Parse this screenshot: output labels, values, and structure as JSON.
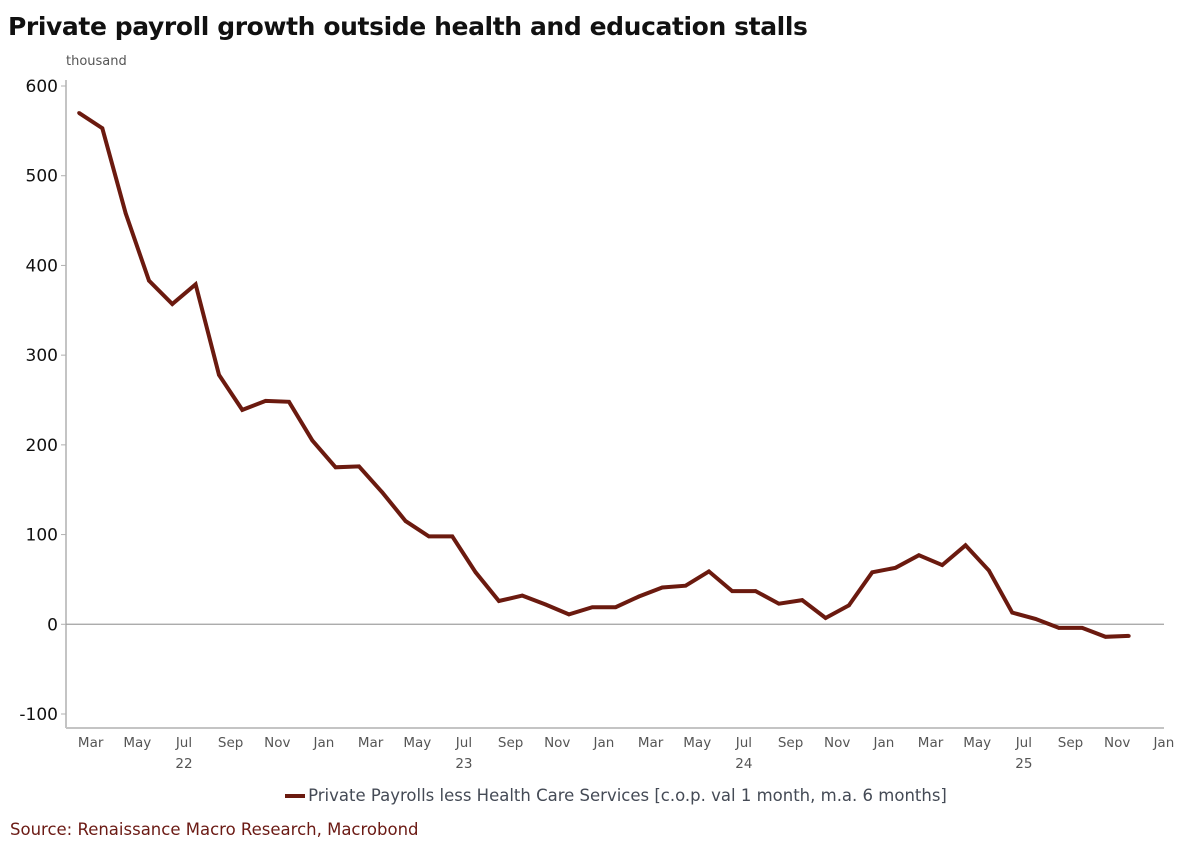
{
  "chart_data": {
    "type": "line",
    "title": "Private payroll growth outside health and education stalls",
    "ylabel": "thousand",
    "xlabel": "",
    "ylim": [
      -100,
      600
    ],
    "yticks": [
      -100,
      0,
      100,
      200,
      300,
      400,
      500,
      600
    ],
    "ytick_labels": [
      "-100",
      "0",
      "100",
      "200",
      "300",
      "400",
      "500",
      "600"
    ],
    "x_start": "2022-03",
    "x_end_axis": "2026-01",
    "xtick_labels": [
      "Mar",
      "May",
      "Jul",
      "Sep",
      "Nov",
      "Jan",
      "Mar",
      "May",
      "Jul",
      "Sep",
      "Nov",
      "Jan",
      "Mar",
      "May",
      "Jul",
      "Sep",
      "Nov",
      "Jan",
      "Mar",
      "May",
      "Jul",
      "Sep",
      "Nov",
      "Jan"
    ],
    "xtick_months_offset": [
      0,
      2,
      4,
      6,
      8,
      10,
      12,
      14,
      16,
      18,
      20,
      22,
      24,
      26,
      28,
      30,
      32,
      34,
      36,
      38,
      40,
      42,
      44,
      46
    ],
    "year_labels": [
      {
        "label": "22",
        "month_offset": 4
      },
      {
        "label": "23",
        "month_offset": 16
      },
      {
        "label": "24",
        "month_offset": 28
      },
      {
        "label": "25",
        "month_offset": 40
      }
    ],
    "grid": false,
    "zero_line": true,
    "legend_position": "bottom-center",
    "series": [
      {
        "name": "Private Payrolls less Health Care Services [c.o.p. val 1 month, m.a. 6 months]",
        "color": "#6b1a0f",
        "x": [
          "2022-03",
          "2022-04",
          "2022-05",
          "2022-06",
          "2022-07",
          "2022-08",
          "2022-09",
          "2022-10",
          "2022-11",
          "2022-12",
          "2023-01",
          "2023-02",
          "2023-03",
          "2023-04",
          "2023-05",
          "2023-06",
          "2023-07",
          "2023-08",
          "2023-09",
          "2023-10",
          "2023-11",
          "2023-12",
          "2024-01",
          "2024-02",
          "2024-03",
          "2024-04",
          "2024-05",
          "2024-06",
          "2024-07",
          "2024-08",
          "2024-09",
          "2024-10",
          "2024-11",
          "2024-12",
          "2025-01",
          "2025-02",
          "2025-03",
          "2025-04",
          "2025-05",
          "2025-06",
          "2025-07",
          "2025-08",
          "2025-09",
          "2025-10",
          "2025-11",
          "2025-12"
        ],
        "values": [
          570,
          553,
          458,
          383,
          357,
          379,
          278,
          239,
          249,
          248,
          205,
          175,
          176,
          147,
          115,
          98,
          98,
          58,
          26,
          32,
          22,
          11,
          19,
          19,
          31,
          41,
          43,
          59,
          37,
          37,
          23,
          27,
          7,
          21,
          58,
          63,
          77,
          66,
          88,
          60,
          13,
          6,
          -4,
          -4,
          -14,
          -13
        ]
      }
    ]
  },
  "legend": {
    "label": "Private Payrolls less Health Care Services [c.o.p. val 1 month, m.a. 6 months]"
  },
  "source": "Source: Renaissance Macro Research, Macrobond"
}
